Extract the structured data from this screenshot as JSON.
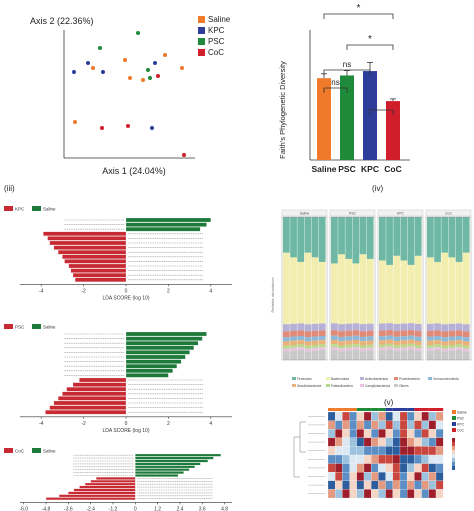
{
  "colors": {
    "saline": "#ee7a2a",
    "kpc": "#2e3d99",
    "psc": "#1f8a3a",
    "coc": "#d01f2a",
    "lefse_red": "#c72a32",
    "lefse_green": "#1e7a3a",
    "teal": "#6fb8a6",
    "yellow": "#f2eeb0"
  },
  "pcoa": {
    "x_label": "Axis 1 (24.04%)",
    "y_label": "Axis 2 (22.36%)",
    "legend": [
      "Saline",
      "KPC",
      "PSC",
      "CoC"
    ]
  },
  "faith": {
    "y_label": "Faith's Phylogenetic Diversity",
    "categories": [
      "Saline",
      "PSC",
      "KPC",
      "CoC"
    ],
    "values": [
      15.0,
      15.5,
      16.3,
      10.8
    ],
    "errors": [
      0.8,
      0.9,
      1.6,
      0.4
    ],
    "ylim": [
      0,
      22
    ],
    "sig": [
      "ns",
      "ns",
      "*",
      "*"
    ]
  },
  "panel_labels": {
    "iii": "(iii)",
    "iv": "(iv)",
    "v": "(v)"
  },
  "lefse": {
    "x_label": "LDA SCORE (log 10)",
    "x_label_last": "LDA SCORE (log 10)",
    "chart1": {
      "legend": [
        "KPC",
        "Saline"
      ],
      "ticks": [
        "-4",
        "-2",
        "0",
        "2",
        "4"
      ],
      "xlim": [
        -5,
        5
      ],
      "values": [
        4.0,
        3.8,
        3.5,
        -3.9,
        -3.7,
        -3.6,
        -3.4,
        -3.2,
        -3.0,
        -2.9,
        -2.7,
        -2.6,
        -2.5,
        -2.4
      ]
    },
    "chart2": {
      "legend": [
        "PSC",
        "Saline"
      ],
      "ticks": [
        "-4",
        "-2",
        "0",
        "2",
        "4"
      ],
      "xlim": [
        -5,
        5
      ],
      "values": [
        3.8,
        3.6,
        3.4,
        3.2,
        3.0,
        2.8,
        2.6,
        2.4,
        2.2,
        2.0,
        -2.2,
        -2.5,
        -2.8,
        -3.0,
        -3.2,
        -3.4,
        -3.6,
        -3.8
      ]
    },
    "chart3": {
      "legend": [
        "CoC",
        "Saline"
      ],
      "ticks": [
        "-6.0",
        "-4.8",
        "-3.6",
        "-2.4",
        "-1.2",
        "0",
        "1.2",
        "2.4",
        "3.6",
        "4.8"
      ],
      "xlim": [
        -6.2,
        5.2
      ],
      "values": [
        4.6,
        4.2,
        3.9,
        3.5,
        3.2,
        2.9,
        2.6,
        2.3,
        -2.1,
        -2.4,
        -2.7,
        -3.0,
        -3.3,
        -3.6,
        -4.1,
        -4.8
      ]
    }
  },
  "composition": {
    "groups": [
      "Saline",
      "PSC",
      "KPC",
      "CoC"
    ],
    "legend": [
      "Firmicutes",
      "Bacteroidota",
      "Actinobacteriota",
      "Proteobacteria",
      "Verrucomicrobiota",
      "Desulfobacterota",
      "Patescibacteria",
      "Campilobacterota",
      "Others"
    ]
  },
  "heatmap": {
    "legend": [
      "Saline",
      "PSC",
      "KPC",
      "CoC"
    ]
  }
}
